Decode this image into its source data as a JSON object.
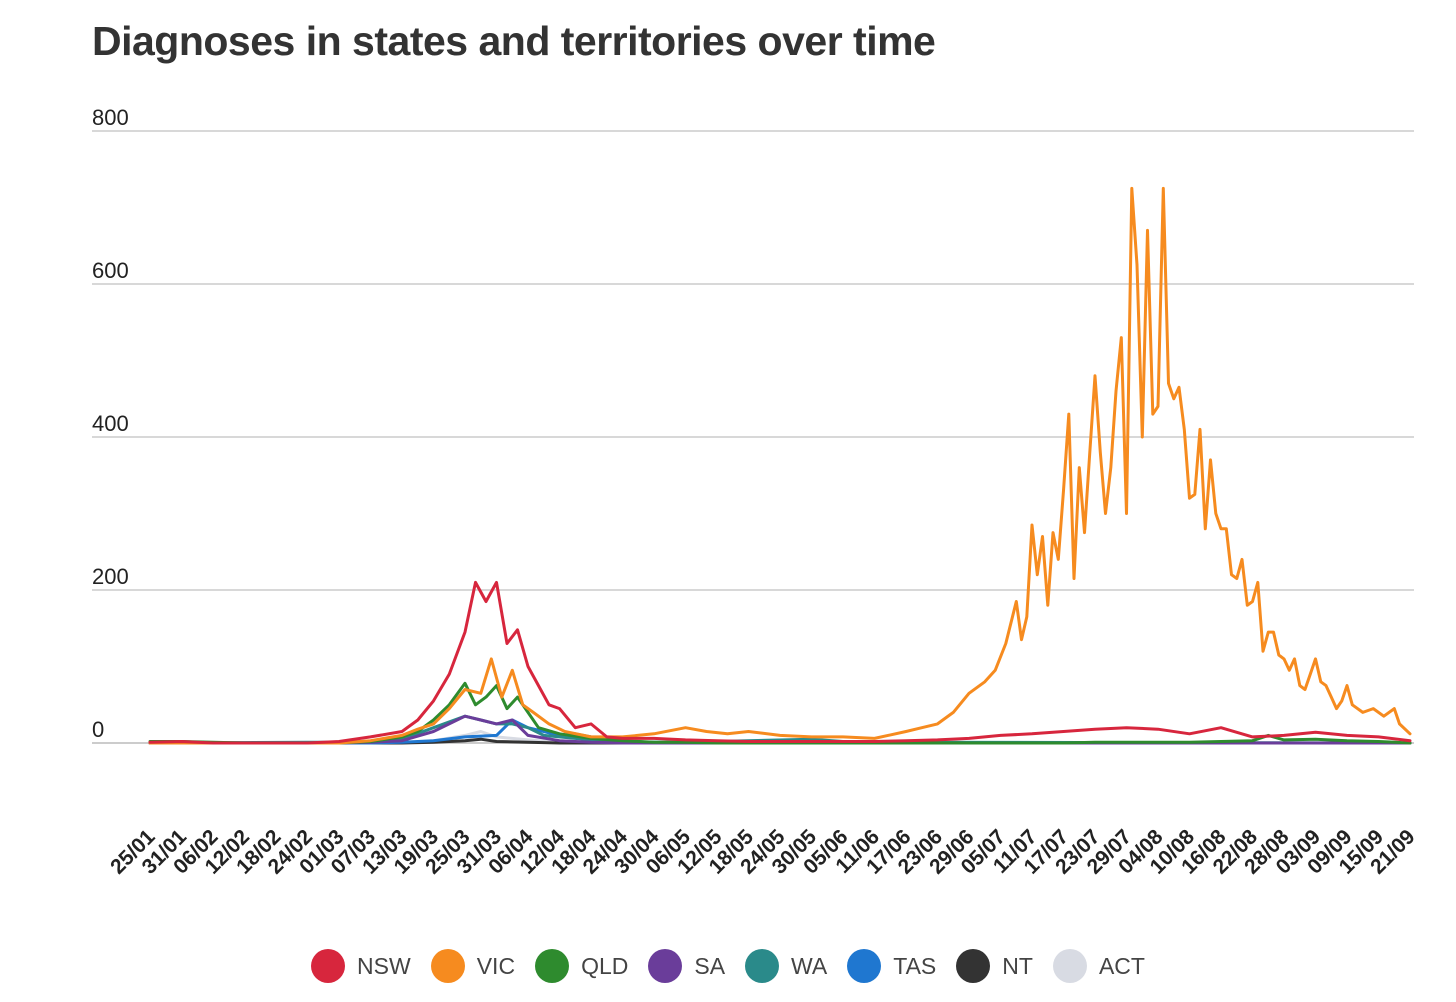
{
  "title": "Diagnoses in states and territories over time",
  "chart_data": {
    "type": "line",
    "title": "Diagnoses in states and territories over time",
    "xlabel": "",
    "ylabel": "",
    "ylim": [
      0,
      800
    ],
    "yticks": [
      0,
      200,
      400,
      600,
      800
    ],
    "grid": true,
    "legend_position": "bottom",
    "x_tick_labels": [
      "25/01",
      "31/01",
      "06/02",
      "12/02",
      "18/02",
      "24/02",
      "01/03",
      "07/03",
      "13/03",
      "19/03",
      "25/03",
      "31/03",
      "06/04",
      "12/04",
      "18/04",
      "24/04",
      "30/04",
      "06/05",
      "12/05",
      "18/05",
      "24/05",
      "30/05",
      "05/06",
      "11/06",
      "17/06",
      "23/06",
      "29/06",
      "05/07",
      "11/07",
      "17/07",
      "23/07",
      "29/07",
      "04/08",
      "10/08",
      "16/08",
      "22/08",
      "28/08",
      "03/09",
      "09/09",
      "15/09",
      "21/09"
    ],
    "series": [
      {
        "name": "NSW",
        "color": "#d7263d",
        "points": [
          [
            "25/01",
            1
          ],
          [
            "31/01",
            2
          ],
          [
            "06/02",
            0
          ],
          [
            "12/02",
            0
          ],
          [
            "18/02",
            0
          ],
          [
            "24/02",
            0
          ],
          [
            "01/03",
            2
          ],
          [
            "07/03",
            8
          ],
          [
            "13/03",
            15
          ],
          [
            "16/03",
            30
          ],
          [
            "19/03",
            55
          ],
          [
            "22/03",
            90
          ],
          [
            "25/03",
            145
          ],
          [
            "27/03",
            210
          ],
          [
            "29/03",
            185
          ],
          [
            "31/03",
            210
          ],
          [
            "02/04",
            130
          ],
          [
            "04/04",
            148
          ],
          [
            "06/04",
            100
          ],
          [
            "08/04",
            75
          ],
          [
            "10/04",
            50
          ],
          [
            "12/04",
            45
          ],
          [
            "15/04",
            20
          ],
          [
            "18/04",
            25
          ],
          [
            "21/04",
            8
          ],
          [
            "24/04",
            6
          ],
          [
            "30/04",
            6
          ],
          [
            "06/05",
            4
          ],
          [
            "12/05",
            3
          ],
          [
            "18/05",
            2
          ],
          [
            "24/05",
            2
          ],
          [
            "30/05",
            2
          ],
          [
            "05/06",
            2
          ],
          [
            "11/06",
            2
          ],
          [
            "17/06",
            3
          ],
          [
            "23/06",
            4
          ],
          [
            "29/06",
            6
          ],
          [
            "05/07",
            10
          ],
          [
            "11/07",
            12
          ],
          [
            "17/07",
            15
          ],
          [
            "23/07",
            18
          ],
          [
            "29/07",
            20
          ],
          [
            "04/08",
            18
          ],
          [
            "10/08",
            12
          ],
          [
            "16/08",
            20
          ],
          [
            "22/08",
            8
          ],
          [
            "28/08",
            10
          ],
          [
            "03/09",
            14
          ],
          [
            "09/09",
            10
          ],
          [
            "15/09",
            8
          ],
          [
            "21/09",
            3
          ]
        ]
      },
      {
        "name": "VIC",
        "color": "#f68b1f",
        "points": [
          [
            "25/01",
            0
          ],
          [
            "31/01",
            0
          ],
          [
            "06/02",
            0
          ],
          [
            "12/02",
            0
          ],
          [
            "18/02",
            0
          ],
          [
            "24/02",
            0
          ],
          [
            "01/03",
            0
          ],
          [
            "07/03",
            3
          ],
          [
            "13/03",
            10
          ],
          [
            "16/03",
            18
          ],
          [
            "19/03",
            25
          ],
          [
            "22/03",
            45
          ],
          [
            "25/03",
            70
          ],
          [
            "28/03",
            65
          ],
          [
            "30/03",
            110
          ],
          [
            "01/04",
            60
          ],
          [
            "03/04",
            95
          ],
          [
            "05/04",
            50
          ],
          [
            "07/04",
            40
          ],
          [
            "10/04",
            25
          ],
          [
            "13/04",
            15
          ],
          [
            "18/04",
            8
          ],
          [
            "24/04",
            8
          ],
          [
            "30/04",
            12
          ],
          [
            "06/05",
            20
          ],
          [
            "10/05",
            15
          ],
          [
            "14/05",
            12
          ],
          [
            "18/05",
            15
          ],
          [
            "24/05",
            10
          ],
          [
            "30/05",
            8
          ],
          [
            "05/06",
            8
          ],
          [
            "11/06",
            6
          ],
          [
            "17/06",
            15
          ],
          [
            "20/06",
            20
          ],
          [
            "23/06",
            25
          ],
          [
            "26/06",
            40
          ],
          [
            "29/06",
            65
          ],
          [
            "02/07",
            80
          ],
          [
            "04/07",
            95
          ],
          [
            "06/07",
            130
          ],
          [
            "08/07",
            185
          ],
          [
            "09/07",
            135
          ],
          [
            "10/07",
            165
          ],
          [
            "11/07",
            285
          ],
          [
            "12/07",
            220
          ],
          [
            "13/07",
            270
          ],
          [
            "14/07",
            180
          ],
          [
            "15/07",
            275
          ],
          [
            "16/07",
            240
          ],
          [
            "17/07",
            330
          ],
          [
            "18/07",
            430
          ],
          [
            "19/07",
            215
          ],
          [
            "20/07",
            360
          ],
          [
            "21/07",
            275
          ],
          [
            "22/07",
            380
          ],
          [
            "23/07",
            480
          ],
          [
            "24/07",
            380
          ],
          [
            "25/07",
            300
          ],
          [
            "26/07",
            360
          ],
          [
            "27/07",
            460
          ],
          [
            "28/07",
            530
          ],
          [
            "29/07",
            300
          ],
          [
            "30/07",
            725
          ],
          [
            "31/07",
            625
          ],
          [
            "01/08",
            400
          ],
          [
            "02/08",
            670
          ],
          [
            "03/08",
            430
          ],
          [
            "04/08",
            440
          ],
          [
            "05/08",
            725
          ],
          [
            "06/08",
            470
          ],
          [
            "07/08",
            450
          ],
          [
            "08/08",
            465
          ],
          [
            "09/08",
            410
          ],
          [
            "10/08",
            320
          ],
          [
            "11/08",
            325
          ],
          [
            "12/08",
            410
          ],
          [
            "13/08",
            280
          ],
          [
            "14/08",
            370
          ],
          [
            "15/08",
            300
          ],
          [
            "16/08",
            280
          ],
          [
            "17/08",
            280
          ],
          [
            "18/08",
            220
          ],
          [
            "19/08",
            215
          ],
          [
            "20/08",
            240
          ],
          [
            "21/08",
            180
          ],
          [
            "22/08",
            185
          ],
          [
            "23/08",
            210
          ],
          [
            "24/08",
            120
          ],
          [
            "25/08",
            145
          ],
          [
            "26/08",
            145
          ],
          [
            "27/08",
            115
          ],
          [
            "28/08",
            110
          ],
          [
            "29/08",
            95
          ],
          [
            "30/08",
            110
          ],
          [
            "31/08",
            75
          ],
          [
            "01/09",
            70
          ],
          [
            "02/09",
            90
          ],
          [
            "03/09",
            110
          ],
          [
            "04/09",
            80
          ],
          [
            "05/09",
            75
          ],
          [
            "06/09",
            60
          ],
          [
            "07/09",
            45
          ],
          [
            "08/09",
            55
          ],
          [
            "09/09",
            75
          ],
          [
            "10/09",
            50
          ],
          [
            "12/09",
            40
          ],
          [
            "14/09",
            45
          ],
          [
            "16/09",
            35
          ],
          [
            "18/09",
            45
          ],
          [
            "19/09",
            25
          ],
          [
            "21/09",
            12
          ]
        ]
      },
      {
        "name": "QLD",
        "color": "#2e8b2e",
        "points": [
          [
            "25/01",
            2
          ],
          [
            "31/01",
            2
          ],
          [
            "06/02",
            1
          ],
          [
            "12/02",
            0
          ],
          [
            "18/02",
            0
          ],
          [
            "24/02",
            0
          ],
          [
            "01/03",
            0
          ],
          [
            "07/03",
            2
          ],
          [
            "13/03",
            8
          ],
          [
            "16/03",
            15
          ],
          [
            "19/03",
            30
          ],
          [
            "22/03",
            50
          ],
          [
            "25/03",
            78
          ],
          [
            "27/03",
            50
          ],
          [
            "29/03",
            60
          ],
          [
            "31/03",
            75
          ],
          [
            "02/04",
            45
          ],
          [
            "04/04",
            60
          ],
          [
            "06/04",
            40
          ],
          [
            "08/04",
            20
          ],
          [
            "12/04",
            12
          ],
          [
            "18/04",
            6
          ],
          [
            "24/04",
            3
          ],
          [
            "30/04",
            1
          ],
          [
            "06/05",
            1
          ],
          [
            "12/05",
            0
          ],
          [
            "18/05",
            0
          ],
          [
            "24/05",
            0
          ],
          [
            "30/05",
            0
          ],
          [
            "05/06",
            0
          ],
          [
            "11/06",
            0
          ],
          [
            "17/06",
            0
          ],
          [
            "23/06",
            0
          ],
          [
            "29/06",
            0
          ],
          [
            "05/07",
            0
          ],
          [
            "11/07",
            0
          ],
          [
            "17/07",
            0
          ],
          [
            "23/07",
            1
          ],
          [
            "29/07",
            1
          ],
          [
            "04/08",
            1
          ],
          [
            "10/08",
            1
          ],
          [
            "16/08",
            2
          ],
          [
            "22/08",
            3
          ],
          [
            "25/08",
            10
          ],
          [
            "28/08",
            4
          ],
          [
            "03/09",
            5
          ],
          [
            "09/09",
            3
          ],
          [
            "15/09",
            2
          ],
          [
            "21/09",
            0
          ]
        ]
      },
      {
        "name": "SA",
        "color": "#6a3d9a",
        "points": [
          [
            "25/01",
            0
          ],
          [
            "01/03",
            0
          ],
          [
            "07/03",
            1
          ],
          [
            "13/03",
            3
          ],
          [
            "19/03",
            15
          ],
          [
            "25/03",
            35
          ],
          [
            "28/03",
            30
          ],
          [
            "31/03",
            25
          ],
          [
            "03/04",
            30
          ],
          [
            "06/04",
            10
          ],
          [
            "12/04",
            3
          ],
          [
            "18/04",
            1
          ],
          [
            "24/04",
            0
          ],
          [
            "21/09",
            0
          ]
        ]
      },
      {
        "name": "WA",
        "color": "#2a8a8a",
        "points": [
          [
            "25/01",
            0
          ],
          [
            "24/02",
            1
          ],
          [
            "01/03",
            1
          ],
          [
            "07/03",
            2
          ],
          [
            "13/03",
            5
          ],
          [
            "19/03",
            20
          ],
          [
            "25/03",
            35
          ],
          [
            "28/03",
            30
          ],
          [
            "31/03",
            25
          ],
          [
            "03/04",
            25
          ],
          [
            "06/04",
            20
          ],
          [
            "09/04",
            10
          ],
          [
            "12/04",
            8
          ],
          [
            "18/04",
            4
          ],
          [
            "24/04",
            2
          ],
          [
            "30/04",
            1
          ],
          [
            "06/05",
            1
          ],
          [
            "30/05",
            5
          ],
          [
            "05/06",
            2
          ],
          [
            "11/06",
            1
          ],
          [
            "21/09",
            0
          ]
        ]
      },
      {
        "name": "TAS",
        "color": "#1f77d0",
        "points": [
          [
            "25/01",
            0
          ],
          [
            "07/03",
            0
          ],
          [
            "13/03",
            1
          ],
          [
            "19/03",
            3
          ],
          [
            "25/03",
            8
          ],
          [
            "31/03",
            10
          ],
          [
            "03/04",
            30
          ],
          [
            "06/04",
            20
          ],
          [
            "09/04",
            15
          ],
          [
            "12/04",
            10
          ],
          [
            "15/04",
            12
          ],
          [
            "18/04",
            8
          ],
          [
            "21/04",
            5
          ],
          [
            "24/04",
            2
          ],
          [
            "30/04",
            1
          ],
          [
            "06/05",
            0
          ],
          [
            "21/09",
            0
          ]
        ]
      },
      {
        "name": "NT",
        "color": "#333333",
        "points": [
          [
            "25/01",
            0
          ],
          [
            "13/03",
            0
          ],
          [
            "19/03",
            1
          ],
          [
            "25/03",
            3
          ],
          [
            "28/03",
            5
          ],
          [
            "31/03",
            2
          ],
          [
            "06/04",
            1
          ],
          [
            "12/04",
            0
          ],
          [
            "21/09",
            0
          ]
        ]
      },
      {
        "name": "ACT",
        "color": "#d8dbe3",
        "points": [
          [
            "25/01",
            0
          ],
          [
            "13/03",
            0
          ],
          [
            "19/03",
            3
          ],
          [
            "25/03",
            10
          ],
          [
            "28/03",
            15
          ],
          [
            "31/03",
            8
          ],
          [
            "06/04",
            4
          ],
          [
            "12/04",
            1
          ],
          [
            "18/04",
            0
          ],
          [
            "21/09",
            0
          ]
        ]
      }
    ]
  }
}
